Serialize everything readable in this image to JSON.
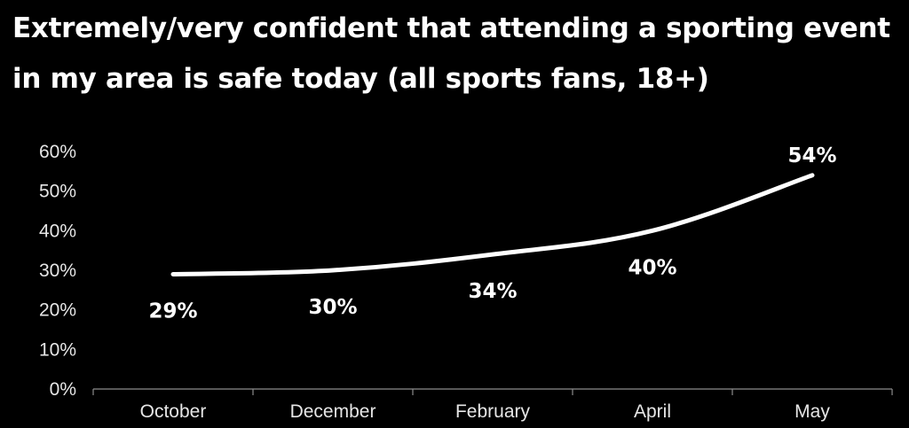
{
  "title": "Extremely/very confident that attending a sporting event in my area is safe today (all sports fans, 18+)",
  "chart_data": {
    "type": "line",
    "title": "Extremely/very confident that attending a sporting event in my area is safe today (all sports fans, 18+)",
    "categories": [
      "October",
      "December",
      "February",
      "April",
      "May"
    ],
    "series": [
      {
        "values": [
          29,
          30,
          34,
          40,
          54
        ]
      }
    ],
    "data_labels": [
      "29%",
      "30%",
      "34%",
      "40%",
      "54%"
    ],
    "y_ticks": [
      "0%",
      "10%",
      "20%",
      "30%",
      "40%",
      "50%",
      "60%"
    ],
    "ylim": [
      0,
      60
    ],
    "xlabel": "",
    "ylabel": "",
    "grid": false,
    "colors": {
      "background": "#000000",
      "line": "#ffffff",
      "text": "#ffffff"
    }
  }
}
